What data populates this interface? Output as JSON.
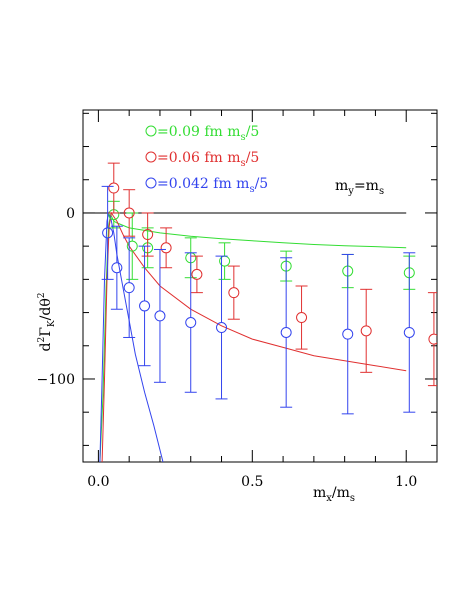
{
  "chart_data": {
    "type": "scatter",
    "title": "",
    "xlabel": "m_x/m_s",
    "ylabel": "d²Γ_K/dθ²",
    "xlim": [
      -0.05,
      1.1
    ],
    "ylim": [
      -150,
      62
    ],
    "x_ticks": [
      0.0,
      0.5,
      1.0
    ],
    "x_tick_labels": [
      "0.0",
      "0.5",
      "1.0"
    ],
    "y_ticks": [
      0,
      -100
    ],
    "y_tick_labels": [
      "0",
      "−100"
    ],
    "grid": false,
    "legend_position": "top-left",
    "annotation": "m_y=m_s",
    "reference_line": {
      "y": 0,
      "x_range": [
        -0.05,
        1.0
      ]
    },
    "series": [
      {
        "name": "=0.09 fm m_s/5",
        "color": "#33dd33",
        "points": [
          {
            "x": 0.05,
            "y": -1,
            "err": 8
          },
          {
            "x": 0.11,
            "y": -20,
            "err": 20
          },
          {
            "x": 0.16,
            "y": -21,
            "err": 12
          },
          {
            "x": 0.3,
            "y": -27,
            "err": 12
          },
          {
            "x": 0.41,
            "y": -29,
            "err": 11
          },
          {
            "x": 0.61,
            "y": -32,
            "err": 9
          },
          {
            "x": 0.81,
            "y": -35,
            "err": 10
          },
          {
            "x": 1.01,
            "y": -36,
            "err": 10
          }
        ],
        "curve": [
          [
            0.005,
            -150
          ],
          [
            0.015,
            -110
          ],
          [
            0.025,
            -45
          ],
          [
            0.033,
            -8
          ],
          [
            0.04,
            -1
          ],
          [
            0.05,
            -5
          ],
          [
            0.06,
            -6
          ],
          [
            0.08,
            -7.5
          ],
          [
            0.1,
            -9
          ],
          [
            0.15,
            -10.5
          ],
          [
            0.2,
            -12
          ],
          [
            0.3,
            -14
          ],
          [
            0.4,
            -15.5
          ],
          [
            0.5,
            -16.8
          ],
          [
            0.6,
            -18
          ],
          [
            0.7,
            -19
          ],
          [
            0.8,
            -19.8
          ],
          [
            0.9,
            -20.3
          ],
          [
            1.0,
            -21
          ]
        ]
      },
      {
        "name": "=0.06 fm m_s/5",
        "color": "#e03030",
        "points": [
          {
            "x": 0.05,
            "y": 15,
            "err": 15
          },
          {
            "x": 0.1,
            "y": 0,
            "err": 14
          },
          {
            "x": 0.16,
            "y": -13,
            "err": 13
          },
          {
            "x": 0.22,
            "y": -21,
            "err": 12
          },
          {
            "x": 0.32,
            "y": -37,
            "err": 11
          },
          {
            "x": 0.44,
            "y": -48,
            "err": 16
          },
          {
            "x": 0.66,
            "y": -63,
            "err": 19
          },
          {
            "x": 0.87,
            "y": -71,
            "err": 25
          },
          {
            "x": 1.09,
            "y": -76,
            "err": 28
          }
        ],
        "curve": [
          [
            0.012,
            -150
          ],
          [
            0.02,
            -100
          ],
          [
            0.028,
            -40
          ],
          [
            0.035,
            -8
          ],
          [
            0.042,
            0
          ],
          [
            0.06,
            -5
          ],
          [
            0.08,
            -13
          ],
          [
            0.1,
            -20
          ],
          [
            0.15,
            -33
          ],
          [
            0.2,
            -44
          ],
          [
            0.3,
            -58
          ],
          [
            0.4,
            -68
          ],
          [
            0.5,
            -76
          ],
          [
            0.6,
            -81
          ],
          [
            0.7,
            -86
          ],
          [
            0.8,
            -89
          ],
          [
            0.9,
            -92
          ],
          [
            1.0,
            -95
          ]
        ]
      },
      {
        "name": "=0.042 fm m_s/5",
        "color": "#3344ee",
        "points": [
          {
            "x": 0.03,
            "y": -12,
            "err": 28
          },
          {
            "x": 0.06,
            "y": -33,
            "err": 25
          },
          {
            "x": 0.1,
            "y": -45,
            "err": 30
          },
          {
            "x": 0.15,
            "y": -56,
            "err": 36
          },
          {
            "x": 0.2,
            "y": -62,
            "err": 40
          },
          {
            "x": 0.3,
            "y": -66,
            "err": 42
          },
          {
            "x": 0.4,
            "y": -69,
            "err": 43
          },
          {
            "x": 0.61,
            "y": -72,
            "err": 45
          },
          {
            "x": 0.81,
            "y": -73,
            "err": 48
          },
          {
            "x": 1.01,
            "y": -72,
            "err": 48
          }
        ],
        "curve": [
          [
            0.005,
            -150
          ],
          [
            0.012,
            -100
          ],
          [
            0.02,
            -40
          ],
          [
            0.028,
            -5
          ],
          [
            0.033,
            0
          ],
          [
            0.04,
            -3
          ],
          [
            0.05,
            -12
          ],
          [
            0.06,
            -25
          ],
          [
            0.08,
            -45
          ],
          [
            0.1,
            -65
          ],
          [
            0.12,
            -85
          ],
          [
            0.15,
            -108
          ],
          [
            0.18,
            -128
          ],
          [
            0.21,
            -150
          ]
        ]
      }
    ],
    "legend_prefix": "○"
  }
}
